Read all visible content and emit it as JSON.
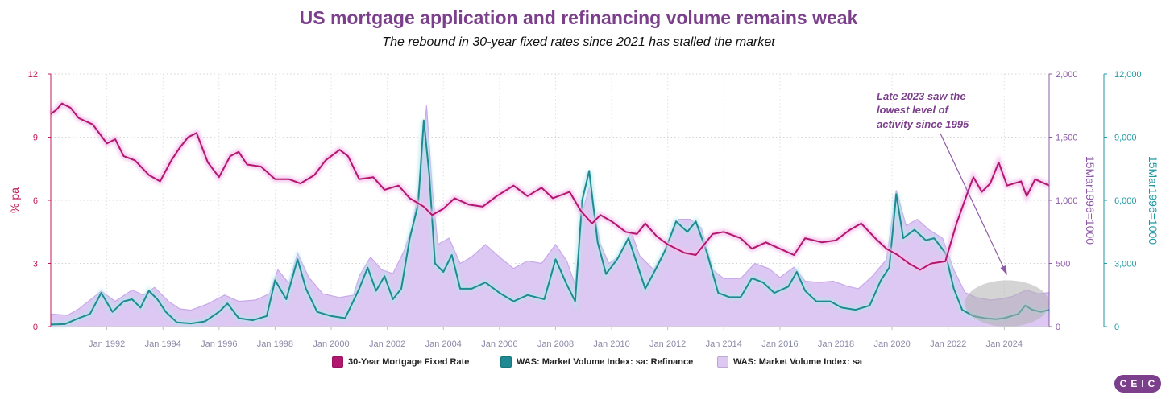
{
  "title": "US mortgage application and refinancing volume remains weak",
  "subtitle": "The rebound in 30-year fixed rates since 2021 has stalled the market",
  "annotation": [
    "Late 2023 saw the",
    "lowest level of",
    "activity since 1995"
  ],
  "logo": "CEIC",
  "colors": {
    "rate": "#b3166e",
    "rate_glow": "#f3c2ec",
    "refi": "#1f8a92",
    "volume_fill": "#dcc8f2",
    "volume_line": "#c7a8ea",
    "left_axis": "#c2185b",
    "mid_axis": "#8e5ba6",
    "right_axis": "#1f9aa5",
    "highlight": "#b0b0b0"
  },
  "chart_data": {
    "type": "line",
    "x_range": [
      1990.0,
      2025.6
    ],
    "x_ticks": [
      "Jan 1992",
      "Jan 1994",
      "Jan 1996",
      "Jan 1998",
      "Jan 2000",
      "Jan 2002",
      "Jan 2004",
      "Jan 2006",
      "Jan 2008",
      "Jan 2010",
      "Jan 2012",
      "Jan 2014",
      "Jan 2016",
      "Jan 2018",
      "Jan 2020",
      "Jan 2022",
      "Jan 2024"
    ],
    "axes": {
      "left": {
        "label": "% pa",
        "range": [
          0,
          12
        ],
        "ticks": [
          "0",
          "3",
          "6",
          "9",
          "12"
        ]
      },
      "right1": {
        "label": "15Mar1996=1000",
        "range": [
          0,
          2000
        ],
        "ticks": [
          "0",
          "500",
          "1,000",
          "1,500",
          "2,000"
        ]
      },
      "right2": {
        "label": "15Mar1996=1000",
        "range": [
          0,
          12000
        ],
        "ticks": [
          "0",
          "3,000",
          "6,000",
          "9,000",
          "12,000"
        ]
      }
    },
    "grid": true,
    "legend_position": "bottom",
    "highlight_region": {
      "x": [
        2022.6,
        2025.6
      ],
      "y_right2": [
        0,
        2200
      ]
    },
    "series": [
      {
        "name": "30-Year Mortgage Fixed Rate",
        "axis": "left",
        "points": [
          [
            1990.0,
            10.1
          ],
          [
            1990.2,
            10.3
          ],
          [
            1990.4,
            10.6
          ],
          [
            1990.7,
            10.4
          ],
          [
            1991.0,
            9.9
          ],
          [
            1991.5,
            9.6
          ],
          [
            1992.0,
            8.7
          ],
          [
            1992.3,
            8.9
          ],
          [
            1992.6,
            8.1
          ],
          [
            1993.0,
            7.9
          ],
          [
            1993.5,
            7.2
          ],
          [
            1993.9,
            6.9
          ],
          [
            1994.3,
            7.9
          ],
          [
            1994.6,
            8.5
          ],
          [
            1994.9,
            9.0
          ],
          [
            1995.2,
            9.2
          ],
          [
            1995.6,
            7.8
          ],
          [
            1996.0,
            7.1
          ],
          [
            1996.4,
            8.1
          ],
          [
            1996.7,
            8.3
          ],
          [
            1997.0,
            7.7
          ],
          [
            1997.5,
            7.6
          ],
          [
            1998.0,
            7.0
          ],
          [
            1998.5,
            7.0
          ],
          [
            1998.9,
            6.8
          ],
          [
            1999.4,
            7.2
          ],
          [
            1999.8,
            7.9
          ],
          [
            2000.3,
            8.4
          ],
          [
            2000.6,
            8.1
          ],
          [
            2001.0,
            7.0
          ],
          [
            2001.5,
            7.1
          ],
          [
            2001.9,
            6.5
          ],
          [
            2002.4,
            6.7
          ],
          [
            2002.8,
            6.1
          ],
          [
            2003.3,
            5.7
          ],
          [
            2003.6,
            5.3
          ],
          [
            2004.0,
            5.6
          ],
          [
            2004.4,
            6.1
          ],
          [
            2004.9,
            5.8
          ],
          [
            2005.4,
            5.7
          ],
          [
            2005.9,
            6.2
          ],
          [
            2006.5,
            6.7
          ],
          [
            2007.0,
            6.2
          ],
          [
            2007.5,
            6.6
          ],
          [
            2007.9,
            6.1
          ],
          [
            2008.5,
            6.4
          ],
          [
            2008.9,
            5.5
          ],
          [
            2009.3,
            4.9
          ],
          [
            2009.6,
            5.3
          ],
          [
            2010.0,
            5.0
          ],
          [
            2010.5,
            4.5
          ],
          [
            2010.9,
            4.4
          ],
          [
            2011.2,
            4.9
          ],
          [
            2011.6,
            4.3
          ],
          [
            2012.0,
            3.9
          ],
          [
            2012.6,
            3.5
          ],
          [
            2013.0,
            3.4
          ],
          [
            2013.6,
            4.4
          ],
          [
            2014.0,
            4.5
          ],
          [
            2014.6,
            4.2
          ],
          [
            2015.0,
            3.7
          ],
          [
            2015.5,
            4.0
          ],
          [
            2016.0,
            3.7
          ],
          [
            2016.5,
            3.4
          ],
          [
            2016.9,
            4.2
          ],
          [
            2017.5,
            4.0
          ],
          [
            2018.0,
            4.1
          ],
          [
            2018.5,
            4.6
          ],
          [
            2018.9,
            4.9
          ],
          [
            2019.4,
            4.2
          ],
          [
            2019.8,
            3.7
          ],
          [
            2020.2,
            3.4
          ],
          [
            2020.6,
            3.0
          ],
          [
            2021.0,
            2.7
          ],
          [
            2021.4,
            3.0
          ],
          [
            2021.9,
            3.1
          ],
          [
            2022.3,
            4.9
          ],
          [
            2022.7,
            6.4
          ],
          [
            2022.9,
            7.1
          ],
          [
            2023.2,
            6.4
          ],
          [
            2023.5,
            6.8
          ],
          [
            2023.8,
            7.8
          ],
          [
            2024.1,
            6.7
          ],
          [
            2024.6,
            6.9
          ],
          [
            2024.8,
            6.2
          ],
          [
            2025.1,
            7.0
          ],
          [
            2025.6,
            6.7
          ]
        ]
      },
      {
        "name": "WAS: Market Volume Index: sa: Refinance",
        "axis": "right2",
        "points": [
          [
            1990.0,
            100
          ],
          [
            1990.5,
            120
          ],
          [
            1991.0,
            400
          ],
          [
            1991.4,
            600
          ],
          [
            1991.8,
            1600
          ],
          [
            1992.2,
            700
          ],
          [
            1992.6,
            1200
          ],
          [
            1992.9,
            1300
          ],
          [
            1993.2,
            900
          ],
          [
            1993.5,
            1700
          ],
          [
            1993.8,
            1300
          ],
          [
            1994.1,
            700
          ],
          [
            1994.5,
            200
          ],
          [
            1995.0,
            150
          ],
          [
            1995.5,
            250
          ],
          [
            1996.0,
            700
          ],
          [
            1996.3,
            1100
          ],
          [
            1996.7,
            400
          ],
          [
            1997.2,
            300
          ],
          [
            1997.7,
            500
          ],
          [
            1998.0,
            2200
          ],
          [
            1998.4,
            1300
          ],
          [
            1998.8,
            3200
          ],
          [
            1999.1,
            1800
          ],
          [
            1999.5,
            700
          ],
          [
            2000.0,
            500
          ],
          [
            2000.5,
            400
          ],
          [
            2001.0,
            1800
          ],
          [
            2001.3,
            2800
          ],
          [
            2001.6,
            1700
          ],
          [
            2001.9,
            2400
          ],
          [
            2002.2,
            1300
          ],
          [
            2002.5,
            1800
          ],
          [
            2002.8,
            4200
          ],
          [
            2003.1,
            5800
          ],
          [
            2003.3,
            9800
          ],
          [
            2003.5,
            7200
          ],
          [
            2003.7,
            3000
          ],
          [
            2004.0,
            2600
          ],
          [
            2004.3,
            3400
          ],
          [
            2004.6,
            1800
          ],
          [
            2005.0,
            1800
          ],
          [
            2005.5,
            2100
          ],
          [
            2006.0,
            1600
          ],
          [
            2006.5,
            1200
          ],
          [
            2007.0,
            1500
          ],
          [
            2007.6,
            1300
          ],
          [
            2008.0,
            3200
          ],
          [
            2008.4,
            2000
          ],
          [
            2008.7,
            1200
          ],
          [
            2008.95,
            6000
          ],
          [
            2009.2,
            7400
          ],
          [
            2009.5,
            4000
          ],
          [
            2009.8,
            2500
          ],
          [
            2010.2,
            3200
          ],
          [
            2010.6,
            4200
          ],
          [
            2010.9,
            3000
          ],
          [
            2011.2,
            1800
          ],
          [
            2011.6,
            2800
          ],
          [
            2011.9,
            3600
          ],
          [
            2012.3,
            5000
          ],
          [
            2012.7,
            4500
          ],
          [
            2013.0,
            5000
          ],
          [
            2013.4,
            3500
          ],
          [
            2013.8,
            1600
          ],
          [
            2014.2,
            1400
          ],
          [
            2014.6,
            1400
          ],
          [
            2015.0,
            2300
          ],
          [
            2015.4,
            2100
          ],
          [
            2015.8,
            1600
          ],
          [
            2016.3,
            1900
          ],
          [
            2016.6,
            2600
          ],
          [
            2016.9,
            1700
          ],
          [
            2017.3,
            1200
          ],
          [
            2017.8,
            1200
          ],
          [
            2018.2,
            900
          ],
          [
            2018.7,
            800
          ],
          [
            2019.2,
            1000
          ],
          [
            2019.6,
            2200
          ],
          [
            2019.9,
            2800
          ],
          [
            2020.15,
            6300
          ],
          [
            2020.4,
            4200
          ],
          [
            2020.8,
            4600
          ],
          [
            2021.2,
            4100
          ],
          [
            2021.5,
            4200
          ],
          [
            2021.9,
            3500
          ],
          [
            2022.2,
            1800
          ],
          [
            2022.5,
            800
          ],
          [
            2022.9,
            500
          ],
          [
            2023.3,
            400
          ],
          [
            2023.7,
            350
          ],
          [
            2024.0,
            400
          ],
          [
            2024.5,
            600
          ],
          [
            2024.75,
            1000
          ],
          [
            2025.0,
            800
          ],
          [
            2025.3,
            700
          ],
          [
            2025.6,
            800
          ]
        ]
      },
      {
        "name": "WAS: Market Volume Index: sa",
        "axis": "right1",
        "points": [
          [
            1990.0,
            100
          ],
          [
            1990.6,
            90
          ],
          [
            1991.0,
            140
          ],
          [
            1991.8,
            280
          ],
          [
            1992.3,
            200
          ],
          [
            1992.9,
            290
          ],
          [
            1993.3,
            250
          ],
          [
            1993.7,
            310
          ],
          [
            1994.2,
            200
          ],
          [
            1994.6,
            140
          ],
          [
            1995.0,
            130
          ],
          [
            1995.6,
            180
          ],
          [
            1996.2,
            250
          ],
          [
            1996.7,
            200
          ],
          [
            1997.3,
            210
          ],
          [
            1997.8,
            260
          ],
          [
            1998.1,
            450
          ],
          [
            1998.5,
            340
          ],
          [
            1998.8,
            580
          ],
          [
            1999.2,
            390
          ],
          [
            1999.7,
            260
          ],
          [
            2000.3,
            230
          ],
          [
            2000.8,
            250
          ],
          [
            2001.0,
            400
          ],
          [
            2001.4,
            550
          ],
          [
            2001.8,
            450
          ],
          [
            2002.2,
            420
          ],
          [
            2002.6,
            600
          ],
          [
            2002.9,
            800
          ],
          [
            2003.2,
            1200
          ],
          [
            2003.4,
            1750
          ],
          [
            2003.6,
            1100
          ],
          [
            2003.8,
            650
          ],
          [
            2004.2,
            700
          ],
          [
            2004.6,
            500
          ],
          [
            2005.0,
            550
          ],
          [
            2005.5,
            650
          ],
          [
            2006.0,
            550
          ],
          [
            2006.5,
            460
          ],
          [
            2007.0,
            520
          ],
          [
            2007.5,
            500
          ],
          [
            2008.0,
            650
          ],
          [
            2008.4,
            520
          ],
          [
            2008.7,
            330
          ],
          [
            2008.95,
            900
          ],
          [
            2009.2,
            1100
          ],
          [
            2009.6,
            650
          ],
          [
            2009.9,
            500
          ],
          [
            2010.3,
            560
          ],
          [
            2010.7,
            750
          ],
          [
            2011.0,
            560
          ],
          [
            2011.5,
            450
          ],
          [
            2011.9,
            600
          ],
          [
            2012.4,
            850
          ],
          [
            2012.8,
            850
          ],
          [
            2013.2,
            780
          ],
          [
            2013.6,
            450
          ],
          [
            2014.0,
            380
          ],
          [
            2014.6,
            380
          ],
          [
            2015.1,
            500
          ],
          [
            2015.6,
            460
          ],
          [
            2016.0,
            390
          ],
          [
            2016.5,
            470
          ],
          [
            2016.9,
            360
          ],
          [
            2017.4,
            350
          ],
          [
            2017.9,
            360
          ],
          [
            2018.4,
            320
          ],
          [
            2018.8,
            300
          ],
          [
            2019.3,
            400
          ],
          [
            2019.8,
            530
          ],
          [
            2020.15,
            1080
          ],
          [
            2020.5,
            800
          ],
          [
            2020.9,
            850
          ],
          [
            2021.3,
            770
          ],
          [
            2021.8,
            700
          ],
          [
            2022.2,
            450
          ],
          [
            2022.6,
            270
          ],
          [
            2023.0,
            230
          ],
          [
            2023.5,
            210
          ],
          [
            2023.9,
            220
          ],
          [
            2024.3,
            240
          ],
          [
            2024.8,
            290
          ],
          [
            2025.2,
            260
          ],
          [
            2025.6,
            270
          ]
        ]
      }
    ]
  }
}
